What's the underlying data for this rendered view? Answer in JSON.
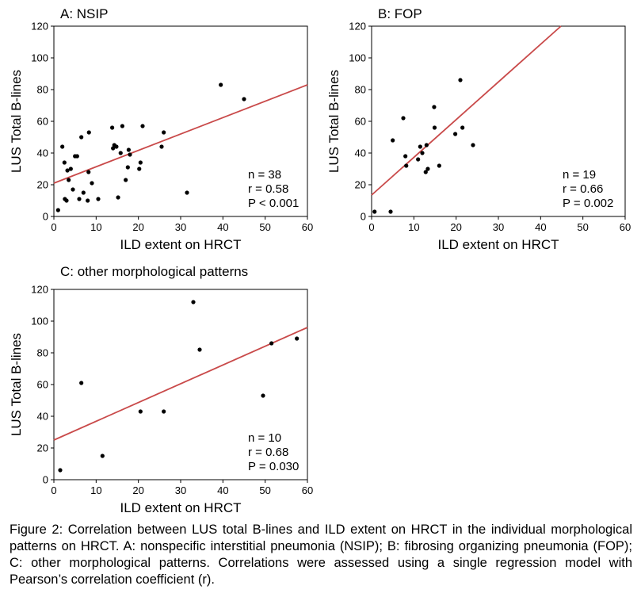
{
  "colors": {
    "fit_line": "#c94a4a",
    "points": "#000000",
    "axes": "#000000"
  },
  "chart_data": [
    {
      "type": "scatter",
      "title": "A: NSIP",
      "xlabel": "ILD extent on HRCT",
      "ylabel": "LUS Total B-lines",
      "xlim": [
        0,
        60
      ],
      "ylim": [
        0,
        120
      ],
      "xticks": [
        "0",
        "10",
        "20",
        "30",
        "40",
        "50",
        "60"
      ],
      "yticks": [
        "0",
        "20",
        "40",
        "60",
        "80",
        "100",
        "120"
      ],
      "grid": false,
      "regression": {
        "x": [
          0,
          60
        ],
        "y": [
          21,
          83
        ]
      },
      "stats": [
        "n = 38",
        "r = 0.58",
        "P < 0.001"
      ],
      "points": [
        [
          1,
          4
        ],
        [
          2,
          44
        ],
        [
          2.5,
          34
        ],
        [
          2.6,
          11
        ],
        [
          3,
          10
        ],
        [
          3.2,
          29
        ],
        [
          3.5,
          23
        ],
        [
          4,
          30
        ],
        [
          4.5,
          17
        ],
        [
          5,
          38
        ],
        [
          5.5,
          38
        ],
        [
          6,
          11
        ],
        [
          6.5,
          50
        ],
        [
          7,
          15
        ],
        [
          8,
          10
        ],
        [
          8.2,
          28
        ],
        [
          8.3,
          53
        ],
        [
          9,
          21
        ],
        [
          10.5,
          11
        ],
        [
          13.8,
          56
        ],
        [
          14,
          43
        ],
        [
          14.3,
          45
        ],
        [
          14.8,
          44
        ],
        [
          15.2,
          12
        ],
        [
          15.8,
          40
        ],
        [
          16.2,
          57
        ],
        [
          17,
          23
        ],
        [
          17.5,
          31
        ],
        [
          17.7,
          42
        ],
        [
          18,
          39
        ],
        [
          20.2,
          30
        ],
        [
          20.5,
          34
        ],
        [
          21,
          57
        ],
        [
          25.5,
          44
        ],
        [
          26,
          53
        ],
        [
          31.5,
          15
        ],
        [
          39.5,
          83
        ],
        [
          45,
          74
        ]
      ]
    },
    {
      "type": "scatter",
      "title": "B: FOP",
      "xlabel": "ILD extent on HRCT",
      "ylabel": "LUS Total B-lines",
      "xlim": [
        0,
        60
      ],
      "ylim": [
        0,
        120
      ],
      "xticks": [
        "0",
        "10",
        "20",
        "30",
        "40",
        "50",
        "60"
      ],
      "yticks": [
        "0",
        "20",
        "40",
        "60",
        "80",
        "100",
        "120"
      ],
      "grid": false,
      "regression": {
        "x": [
          0,
          44.8
        ],
        "y": [
          13.5,
          120
        ]
      },
      "stats": [
        "n = 19",
        "r = 0.66",
        "P = 0.002"
      ],
      "points": [
        [
          0.7,
          3
        ],
        [
          4.5,
          3
        ],
        [
          5,
          48
        ],
        [
          7.5,
          62
        ],
        [
          8,
          38
        ],
        [
          8.2,
          32
        ],
        [
          11,
          36
        ],
        [
          11.5,
          44
        ],
        [
          12,
          40
        ],
        [
          12.8,
          28
        ],
        [
          13,
          45
        ],
        [
          13.3,
          30
        ],
        [
          14.8,
          69
        ],
        [
          14.9,
          56
        ],
        [
          16,
          32
        ],
        [
          19.8,
          52
        ],
        [
          21,
          86
        ],
        [
          21.5,
          56
        ],
        [
          24,
          45
        ]
      ]
    },
    {
      "type": "scatter",
      "title": "C: other morphological patterns",
      "xlabel": "ILD extent on HRCT",
      "ylabel": "LUS Total B-lines",
      "xlim": [
        0,
        60
      ],
      "ylim": [
        0,
        120
      ],
      "xticks": [
        "0",
        "10",
        "20",
        "30",
        "40",
        "50",
        "60"
      ],
      "yticks": [
        "0",
        "20",
        "40",
        "60",
        "80",
        "100",
        "120"
      ],
      "grid": false,
      "regression": {
        "x": [
          0,
          60
        ],
        "y": [
          25,
          96
        ]
      },
      "stats": [
        "n = 10",
        "r = 0.68",
        "P = 0.030"
      ],
      "points": [
        [
          1.5,
          6
        ],
        [
          6.5,
          61
        ],
        [
          11.5,
          15
        ],
        [
          20.5,
          43
        ],
        [
          26,
          43
        ],
        [
          33,
          112
        ],
        [
          34.5,
          82
        ],
        [
          49.5,
          53
        ],
        [
          51.5,
          86
        ],
        [
          57.5,
          89
        ]
      ]
    }
  ],
  "caption": "Figure 2: Correlation between LUS total B-lines and ILD extent on HRCT in the individual morphological patterns on HRCT. A: nonspecific interstitial pneumonia (NSIP); B: fibrosing organizing pneumonia (FOP); C: other morphological patterns. Correlations were assessed using a single regression model with Pearson’s correlation coefficient (r)."
}
